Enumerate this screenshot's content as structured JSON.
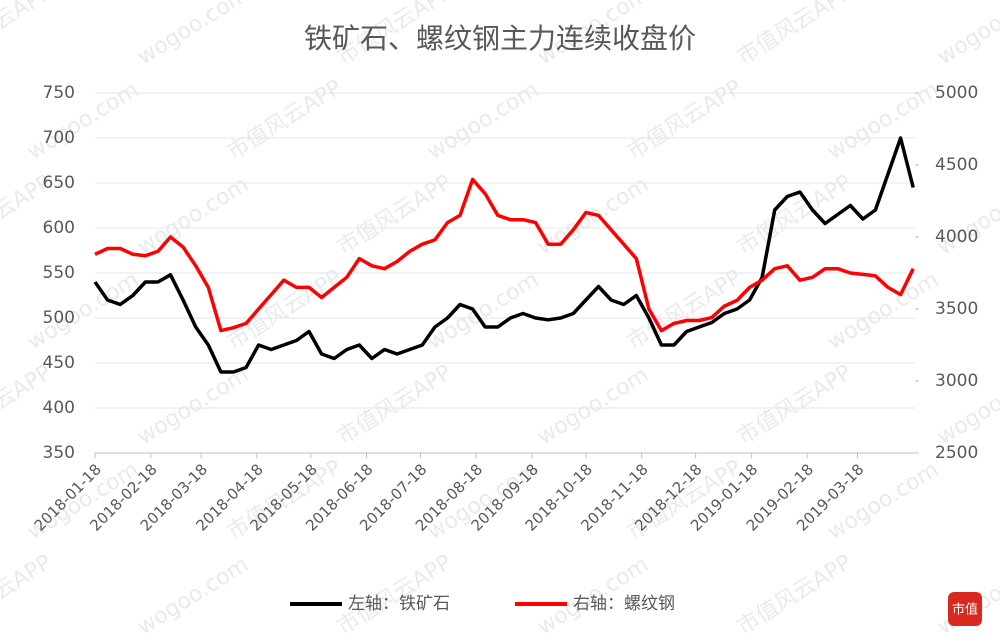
{
  "chart_data": {
    "type": "line",
    "title": "铁矿石、螺纹钢主力连续收盘价",
    "watermarks": [
      "市值风云APP",
      "wogoo.com"
    ],
    "logo": "市值",
    "x": [
      "2018-01-18",
      "2018-01-25",
      "2018-02-01",
      "2018-02-08",
      "2018-02-15",
      "2018-02-22",
      "2018-03-01",
      "2018-03-08",
      "2018-03-15",
      "2018-03-22",
      "2018-03-29",
      "2018-04-05",
      "2018-04-12",
      "2018-04-19",
      "2018-04-26",
      "2018-05-03",
      "2018-05-10",
      "2018-05-17",
      "2018-05-24",
      "2018-05-31",
      "2018-06-07",
      "2018-06-14",
      "2018-06-21",
      "2018-06-28",
      "2018-07-05",
      "2018-07-12",
      "2018-07-19",
      "2018-07-26",
      "2018-08-02",
      "2018-08-09",
      "2018-08-16",
      "2018-08-23",
      "2018-08-30",
      "2018-09-06",
      "2018-09-13",
      "2018-09-20",
      "2018-09-27",
      "2018-10-04",
      "2018-10-11",
      "2018-10-18",
      "2018-10-25",
      "2018-11-01",
      "2018-11-08",
      "2018-11-15",
      "2018-11-22",
      "2018-11-29",
      "2018-12-06",
      "2018-12-13",
      "2018-12-20",
      "2018-12-27",
      "2019-01-03",
      "2019-01-10",
      "2019-01-17",
      "2019-01-24",
      "2019-01-31",
      "2019-02-07",
      "2019-02-14",
      "2019-02-21",
      "2019-02-28",
      "2019-03-07",
      "2019-03-14",
      "2019-03-21",
      "2019-03-28",
      "2019-04-04",
      "2019-04-11",
      "2019-04-18"
    ],
    "xlim": [
      "2018-01-18",
      "2019-04-19"
    ],
    "xticks": [
      "2018-01-18",
      "2018-02-18",
      "2018-03-18",
      "2018-04-18",
      "2018-05-18",
      "2018-06-18",
      "2018-07-18",
      "2018-08-18",
      "2018-09-18",
      "2018-10-18",
      "2018-11-18",
      "2018-12-18",
      "2019-01-18",
      "2019-02-18",
      "2019-03-18"
    ],
    "ylim": [
      350,
      750
    ],
    "yticks": [
      350,
      400,
      450,
      500,
      550,
      600,
      650,
      700,
      750
    ],
    "y2lim": [
      2500,
      5000
    ],
    "y2ticks": [
      2500,
      3000,
      3500,
      4000,
      4500,
      5000
    ],
    "grid": true,
    "legend": "bottom",
    "series": [
      {
        "name": "左轴：铁矿石",
        "color": "#000000",
        "values": [
          540,
          520,
          515,
          525,
          540,
          540,
          548,
          520,
          490,
          470,
          440,
          440,
          445,
          470,
          465,
          470,
          475,
          485,
          460,
          455,
          465,
          470,
          455,
          465,
          460,
          465,
          470,
          490,
          500,
          515,
          510,
          490,
          490,
          500,
          505,
          500,
          498,
          500,
          505,
          520,
          535,
          520,
          515,
          525,
          500,
          470,
          470,
          485,
          490,
          495,
          505,
          510,
          520,
          545,
          620,
          635,
          640,
          620,
          605,
          615,
          625,
          610,
          620,
          660,
          700,
          645
        ]
      },
      {
        "name": "右轴：螺纹钢",
        "color": "#ff0000",
        "axis": "y2",
        "values": [
          3880,
          3920,
          3920,
          3880,
          3870,
          3900,
          4000,
          3930,
          3800,
          3650,
          3350,
          3370,
          3400,
          3500,
          3600,
          3700,
          3650,
          3650,
          3580,
          3650,
          3720,
          3850,
          3800,
          3780,
          3830,
          3900,
          3950,
          3980,
          4100,
          4150,
          4400,
          4300,
          4150,
          4120,
          4120,
          4100,
          3950,
          3950,
          4050,
          4170,
          4150,
          4050,
          3950,
          3850,
          3500,
          3350,
          3400,
          3420,
          3420,
          3440,
          3520,
          3560,
          3650,
          3700,
          3780,
          3800,
          3700,
          3720,
          3780,
          3780,
          3750,
          3740,
          3730,
          3650,
          3600,
          3780
        ]
      }
    ]
  }
}
